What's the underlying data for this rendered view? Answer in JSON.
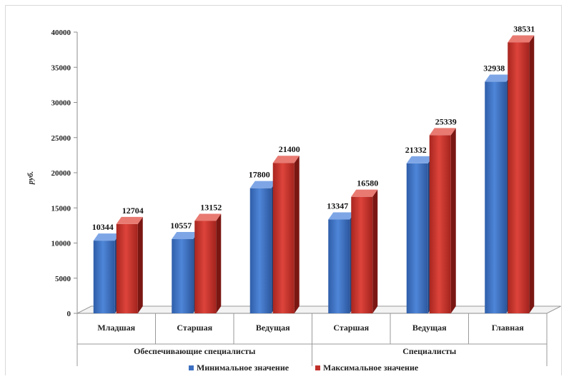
{
  "chart_data": {
    "type": "bar",
    "title": "",
    "ylabel": "руб.",
    "xlabel": "",
    "ylim": [
      0,
      40000
    ],
    "yticks": [
      0,
      5000,
      10000,
      15000,
      20000,
      25000,
      30000,
      35000,
      40000
    ],
    "grid": false,
    "legend_position": "bottom",
    "categories": [
      "Младшая",
      "Старшая",
      "Ведущая",
      "Старшая",
      "Ведущая",
      "Главная"
    ],
    "groups": [
      {
        "label": "Обеспечивающие специалисты",
        "span": [
          0,
          2
        ]
      },
      {
        "label": "Специалисты",
        "span": [
          3,
          5
        ]
      }
    ],
    "series": [
      {
        "name": "Минимальное значение",
        "color": "#3d6fc0",
        "values": [
          10344,
          10557,
          17800,
          13347,
          21332,
          32938
        ]
      },
      {
        "name": "Максимальное значение",
        "color": "#c0312b",
        "values": [
          12704,
          13152,
          21400,
          16580,
          25339,
          38531
        ]
      }
    ]
  }
}
